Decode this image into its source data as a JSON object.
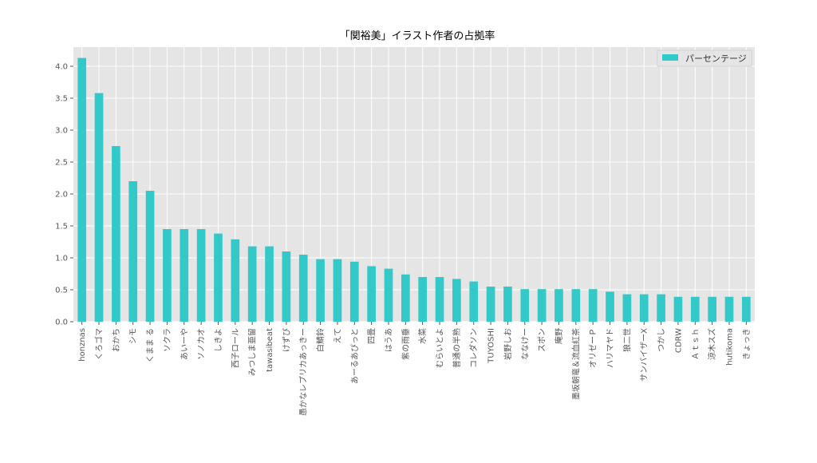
{
  "chart_data": {
    "type": "bar",
    "title": "「関裕美」イラスト作者の占拠率",
    "xlabel": "",
    "ylabel": "",
    "ylim": [
      0,
      4.3
    ],
    "yticks": [
      "0.0",
      "0.5",
      "1.0",
      "1.5",
      "2.0",
      "2.5",
      "3.0",
      "3.5",
      "4.0"
    ],
    "grid": true,
    "legend_position": "top-right",
    "bar_color": "#33c9c9",
    "background_color": "#e5e5e5",
    "categories": [
      "honznas",
      "くろゴマ",
      "おかち",
      "シモ",
      "くまま る",
      "ソクラ",
      "あいーや",
      "ソノカオ",
      "しきよ",
      "西子ロール",
      "みつしま亜留",
      "tawasibeat",
      "けずぴ",
      "愚かなレプリカあっきー",
      "白鯖鈴",
      "えて",
      "あーるあぴっと",
      "四畳",
      "はうあ",
      "紫の雨垂",
      "水菜",
      "むらいとよ",
      "普通の半熟",
      "コレダソン",
      "TUYOSHI",
      "岩野しお",
      "ななけー",
      "スポン",
      "庵野",
      "墨坂朝竜＆流血紅茶",
      "オリゼーＰ",
      "ハリマヤド",
      "狼二世",
      "サンバイザーX",
      "つかし",
      "CDRW",
      "Ａｔｓｈ",
      "涼木スズ",
      "hutikoma",
      "きょっき"
    ],
    "series": [
      {
        "name": "パーセンテージ",
        "values": [
          4.13,
          3.58,
          2.75,
          2.2,
          2.05,
          1.45,
          1.45,
          1.45,
          1.38,
          1.29,
          1.18,
          1.18,
          1.1,
          1.05,
          0.98,
          0.98,
          0.94,
          0.87,
          0.83,
          0.74,
          0.7,
          0.7,
          0.67,
          0.63,
          0.55,
          0.55,
          0.51,
          0.51,
          0.51,
          0.51,
          0.51,
          0.47,
          0.43,
          0.43,
          0.43,
          0.39,
          0.39,
          0.39,
          0.39,
          0.39
        ]
      }
    ]
  }
}
